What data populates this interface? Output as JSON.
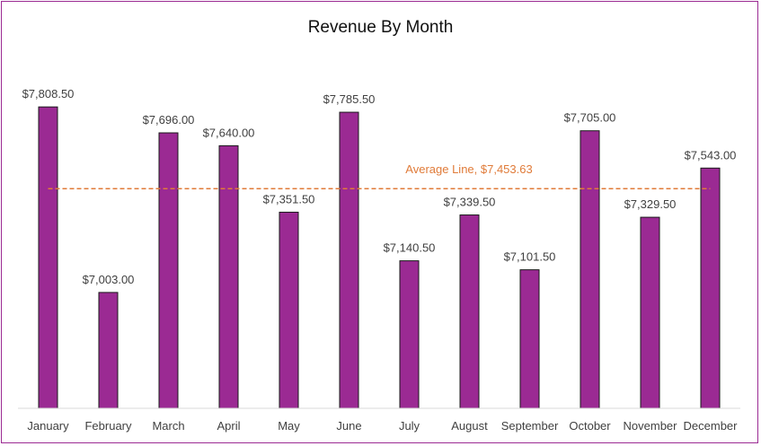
{
  "chart_data": {
    "type": "bar",
    "title": "Revenue By Month",
    "xlabel": "",
    "ylabel": "",
    "categories": [
      "January",
      "February",
      "March",
      "April",
      "May",
      "June",
      "July",
      "August",
      "September",
      "October",
      "November",
      "December"
    ],
    "values": [
      7808.5,
      7003.0,
      7696.0,
      7640.0,
      7351.5,
      7785.5,
      7140.5,
      7339.5,
      7101.5,
      7705.0,
      7329.5,
      7543.0
    ],
    "data_labels": [
      "$7,808.50",
      "$7,003.00",
      "$7,696.00",
      "$7,640.00",
      "$7,351.50",
      "$7,785.50",
      "$7,140.50",
      "$7,339.50",
      "$7,101.50",
      "$7,705.00",
      "$7,329.50",
      "$7,543.00"
    ],
    "ylim": [
      6500,
      8000
    ],
    "grid": false,
    "legend": "none",
    "average_line": {
      "value": 7453.63,
      "label": "Average Line,  $7,453.63",
      "color": "#e07b39",
      "style": "dashed"
    },
    "colors": {
      "bar_fill": "#9b2a93",
      "bar_stroke": "#1a1a1a",
      "frame": "#9b2a93",
      "axis": "#d9d9d9"
    }
  }
}
